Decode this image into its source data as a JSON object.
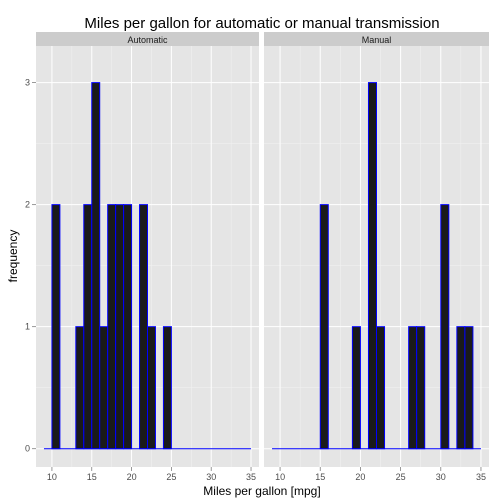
{
  "chart_data": {
    "type": "bar",
    "title": "Miles per gallon for automatic or manual transmission",
    "xlabel": "Miles per gallon [mpg]",
    "ylabel": "frequency",
    "xlim": [
      8,
      36
    ],
    "ylim": [
      -0.15,
      3.3
    ],
    "x_ticks": [
      10,
      15,
      20,
      25,
      30,
      35
    ],
    "y_ticks": [
      0,
      1,
      2,
      3
    ],
    "bin_width": 1,
    "bin_start": 9,
    "bin_end": 35,
    "grid": true,
    "colors": {
      "panel_bg": "#e5e5e5",
      "strip_bg": "#cccccc",
      "gridline": "#ffffff",
      "bar_fill": "#1a1a1a",
      "bar_outline": "#0000ff"
    },
    "panels": [
      {
        "label": "Automatic",
        "bins": [
          {
            "x0": 10,
            "count": 2
          },
          {
            "x0": 13,
            "count": 1
          },
          {
            "x0": 14,
            "count": 2
          },
          {
            "x0": 15,
            "count": 3
          },
          {
            "x0": 16,
            "count": 1
          },
          {
            "x0": 17,
            "count": 2
          },
          {
            "x0": 18,
            "count": 2
          },
          {
            "x0": 19,
            "count": 2
          },
          {
            "x0": 21,
            "count": 2
          },
          {
            "x0": 22,
            "count": 1
          },
          {
            "x0": 24,
            "count": 1
          }
        ]
      },
      {
        "label": "Manual",
        "bins": [
          {
            "x0": 15,
            "count": 2
          },
          {
            "x0": 19,
            "count": 1
          },
          {
            "x0": 21,
            "count": 3
          },
          {
            "x0": 22,
            "count": 1
          },
          {
            "x0": 26,
            "count": 1
          },
          {
            "x0": 27,
            "count": 1
          },
          {
            "x0": 30,
            "count": 2
          },
          {
            "x0": 32,
            "count": 1
          },
          {
            "x0": 33,
            "count": 1
          }
        ]
      }
    ]
  }
}
